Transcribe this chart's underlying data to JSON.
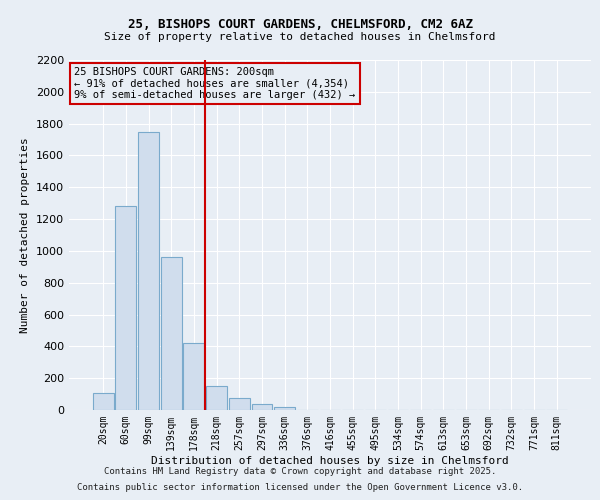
{
  "title_line1": "25, BISHOPS COURT GARDENS, CHELMSFORD, CM2 6AZ",
  "title_line2": "Size of property relative to detached houses in Chelmsford",
  "xlabel": "Distribution of detached houses by size in Chelmsford",
  "ylabel": "Number of detached properties",
  "annotation_title": "25 BISHOPS COURT GARDENS: 200sqm",
  "annotation_line2": "← 91% of detached houses are smaller (4,354)",
  "annotation_line3": "9% of semi-detached houses are larger (432) →",
  "footer_line1": "Contains HM Land Registry data © Crown copyright and database right 2025.",
  "footer_line2": "Contains public sector information licensed under the Open Government Licence v3.0.",
  "categories": [
    "20sqm",
    "60sqm",
    "99sqm",
    "139sqm",
    "178sqm",
    "218sqm",
    "257sqm",
    "297sqm",
    "336sqm",
    "376sqm",
    "416sqm",
    "455sqm",
    "495sqm",
    "534sqm",
    "574sqm",
    "613sqm",
    "653sqm",
    "692sqm",
    "732sqm",
    "771sqm",
    "811sqm"
  ],
  "values": [
    110,
    1280,
    1750,
    960,
    420,
    150,
    75,
    35,
    20,
    0,
    0,
    0,
    0,
    0,
    0,
    0,
    0,
    0,
    0,
    0,
    0
  ],
  "bar_color": "#d0dded",
  "bar_edge_color": "#7aaacc",
  "vline_x": 4.5,
  "vline_color": "#cc0000",
  "annotation_box_color": "#cc0000",
  "background_color": "#e8eef5",
  "grid_color": "#ffffff",
  "ylim": [
    0,
    2200
  ],
  "yticks": [
    0,
    200,
    400,
    600,
    800,
    1000,
    1200,
    1400,
    1600,
    1800,
    2000,
    2200
  ]
}
